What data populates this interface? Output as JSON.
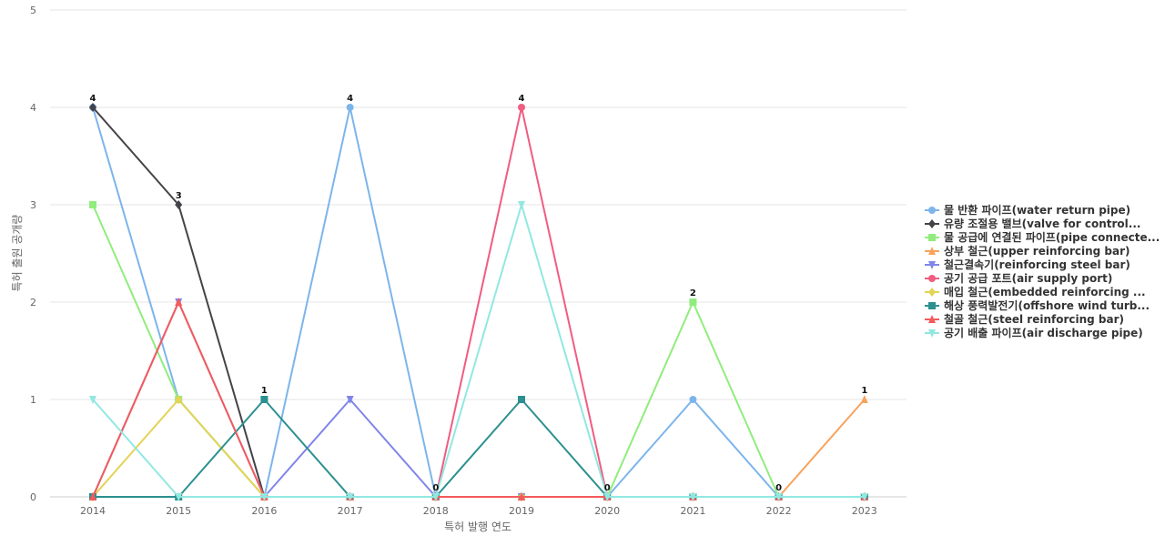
{
  "chart_data": {
    "type": "line",
    "xlabel": "특허 발행 연도",
    "ylabel": "특허 출원 공개량",
    "ylim": [
      0,
      5
    ],
    "y_ticks": [
      0,
      1,
      2,
      3,
      4,
      5
    ],
    "grid": true,
    "legend_position": "right",
    "x": [
      "2014",
      "2015",
      "2016",
      "2017",
      "2018",
      "2019",
      "2020",
      "2021",
      "2022",
      "2023"
    ],
    "series": [
      {
        "name": "물 반환 파이프(water return pipe)",
        "color": "#7cb5ec",
        "marker": "circle",
        "values": [
          4,
          1,
          0,
          4,
          0,
          0,
          0,
          1,
          0,
          0
        ]
      },
      {
        "name": "유량 조절용 밸브(valve for control...",
        "color": "#434348",
        "marker": "diamond",
        "values": [
          4,
          3,
          0,
          0,
          0,
          0,
          0,
          0,
          0,
          0
        ]
      },
      {
        "name": "물 공급에 연결된 파이프(pipe connecte...",
        "color": "#90ed7d",
        "marker": "square",
        "values": [
          3,
          1,
          0,
          0,
          0,
          0,
          0,
          2,
          0,
          0
        ]
      },
      {
        "name": "상부 철근(upper reinforcing bar)",
        "color": "#f7a35c",
        "marker": "triangle",
        "values": [
          0,
          0,
          0,
          0,
          0,
          0,
          0,
          0,
          0,
          1
        ]
      },
      {
        "name": "철근결속기(reinforcing steel bar)",
        "color": "#8085e9",
        "marker": "triangle-down",
        "values": [
          0,
          2,
          0,
          1,
          0,
          0,
          0,
          0,
          0,
          0
        ]
      },
      {
        "name": "공기 공급 포트(air supply port)",
        "color": "#f15c80",
        "marker": "circle",
        "values": [
          0,
          0,
          0,
          0,
          0,
          4,
          0,
          0,
          0,
          0
        ]
      },
      {
        "name": "매입 철근(embedded reinforcing ...",
        "color": "#e4d354",
        "marker": "diamond",
        "values": [
          0,
          1,
          0,
          0,
          0,
          0,
          0,
          0,
          0,
          0
        ]
      },
      {
        "name": "해상 풍력발전기(offshore wind turb...",
        "color": "#2b908f",
        "marker": "square",
        "values": [
          0,
          0,
          1,
          0,
          0,
          1,
          0,
          0,
          0,
          0
        ]
      },
      {
        "name": "철골 철근(steel reinforcing bar)",
        "color": "#f45b5b",
        "marker": "triangle",
        "values": [
          0,
          2,
          0,
          0,
          0,
          0,
          0,
          0,
          0,
          0
        ]
      },
      {
        "name": "공기 배출 파이프(air discharge pipe)",
        "color": "#91e8e1",
        "marker": "triangle-down",
        "values": [
          1,
          0,
          0,
          0,
          0,
          3,
          0,
          0,
          0,
          0
        ]
      }
    ],
    "data_labels": [
      4,
      3,
      1,
      4,
      0,
      4,
      0,
      2,
      0,
      1
    ]
  }
}
